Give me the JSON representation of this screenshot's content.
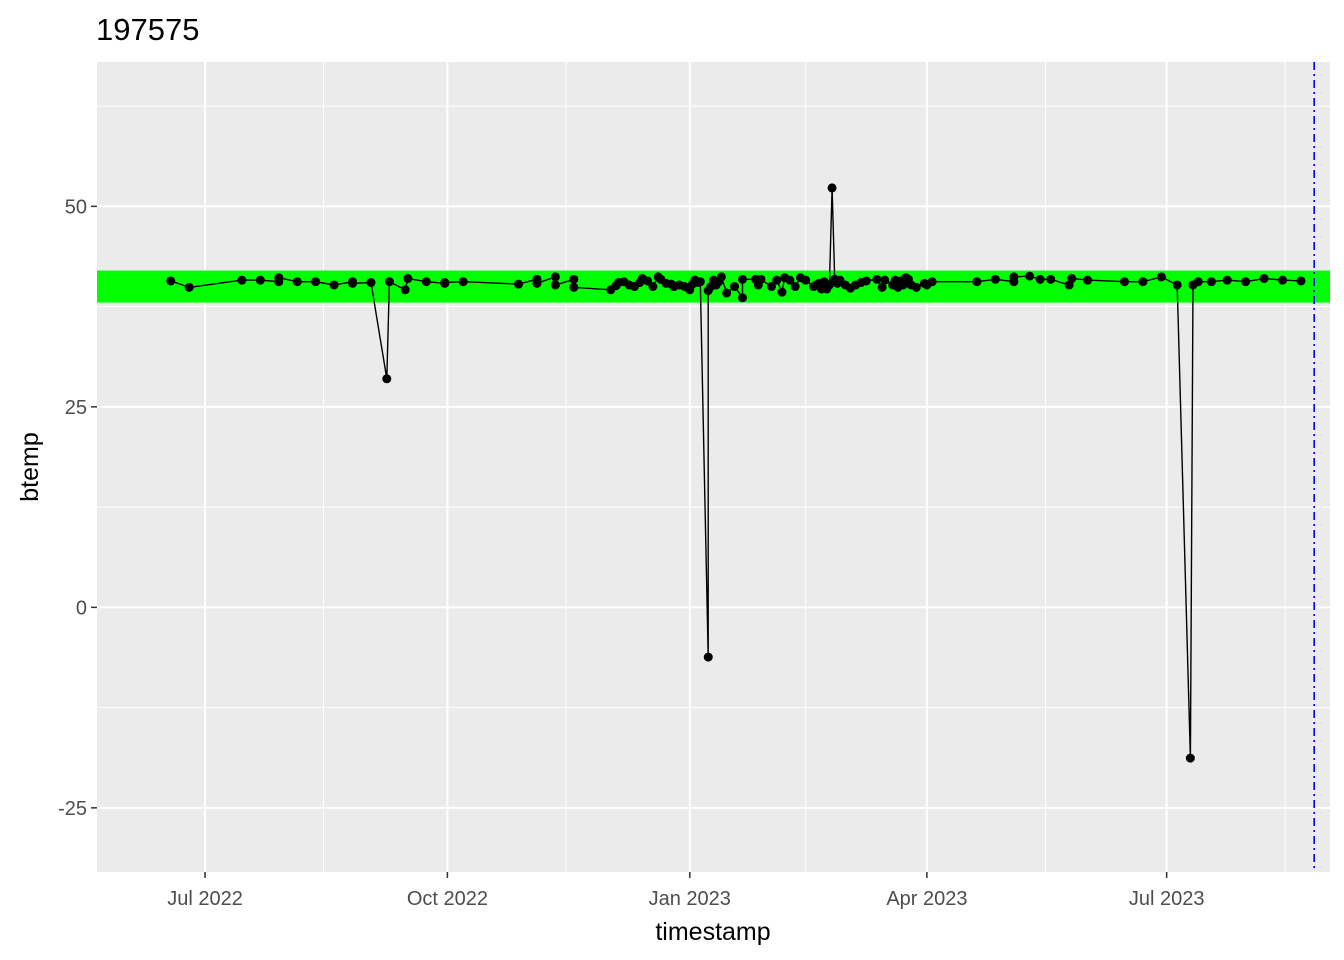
{
  "chart_data": {
    "type": "line",
    "title": "197575",
    "xlabel": "timestamp",
    "ylabel": "btemp",
    "xlim": [
      "2022-05-21",
      "2023-09-01"
    ],
    "ylim": [
      -33,
      68
    ],
    "x_ticks": [
      {
        "date": "2022-07-01",
        "label": "Jul 2022"
      },
      {
        "date": "2022-10-01",
        "label": "Oct 2022"
      },
      {
        "date": "2023-01-01",
        "label": "Jan 2023"
      },
      {
        "date": "2023-04-01",
        "label": "Apr 2023"
      },
      {
        "date": "2023-07-01",
        "label": "Jul 2023"
      }
    ],
    "x_minor_ticks": [
      "2022-08-15",
      "2022-11-15",
      "2023-02-14",
      "2023-05-16",
      "2023-08-15"
    ],
    "y_ticks": [
      -25,
      0,
      25,
      50
    ],
    "y_minor_ticks": [
      -12.5,
      12.5,
      37.5,
      62.5
    ],
    "grid": true,
    "normal_band": {
      "ymin": 38,
      "ymax": 42,
      "color": "#00ff00"
    },
    "reference_line": {
      "date": "2023-08-26",
      "color": "#0000ff",
      "style": "dotdash"
    },
    "series": [
      {
        "color": "#000000",
        "points": [
          [
            "2022-06-18",
            40.7
          ],
          [
            "2022-06-25",
            39.9
          ],
          [
            "2022-07-15",
            40.8
          ],
          [
            "2022-07-22",
            40.8
          ],
          [
            "2022-07-29",
            40.6
          ],
          [
            "2022-07-29",
            41.1
          ],
          [
            "2022-08-05",
            40.6
          ],
          [
            "2022-08-12",
            40.6
          ],
          [
            "2022-08-19",
            40.2
          ],
          [
            "2022-08-26",
            40.6
          ],
          [
            "2022-08-26",
            40.4
          ],
          [
            "2022-09-02",
            40.5
          ],
          [
            "2022-09-08",
            28.5
          ],
          [
            "2022-09-09",
            40.6
          ],
          [
            "2022-09-15",
            39.6
          ],
          [
            "2022-09-16",
            41.0
          ],
          [
            "2022-09-23",
            40.6
          ],
          [
            "2022-09-30",
            40.4
          ],
          [
            "2022-09-30",
            40.5
          ],
          [
            "2022-10-07",
            40.6
          ],
          [
            "2022-10-28",
            40.3
          ],
          [
            "2022-11-04",
            40.9
          ],
          [
            "2022-11-04",
            40.4
          ],
          [
            "2022-11-11",
            41.2
          ],
          [
            "2022-11-11",
            40.2
          ],
          [
            "2022-11-18",
            40.9
          ],
          [
            "2022-11-18",
            39.9
          ],
          [
            "2022-12-02",
            39.6
          ],
          [
            "2022-12-04",
            40.1
          ],
          [
            "2022-12-05",
            40.5
          ],
          [
            "2022-12-07",
            40.6
          ],
          [
            "2022-12-09",
            40.2
          ],
          [
            "2022-12-11",
            40.0
          ],
          [
            "2022-12-13",
            40.5
          ],
          [
            "2022-12-14",
            41.0
          ],
          [
            "2022-12-16",
            40.7
          ],
          [
            "2022-12-18",
            40.0
          ],
          [
            "2022-12-20",
            41.2
          ],
          [
            "2022-12-21",
            40.9
          ],
          [
            "2022-12-23",
            40.4
          ],
          [
            "2022-12-25",
            40.3
          ],
          [
            "2022-12-26",
            40.0
          ],
          [
            "2022-12-28",
            40.2
          ],
          [
            "2022-12-30",
            40.0
          ],
          [
            "2023-01-01",
            39.6
          ],
          [
            "2023-01-02",
            40.3
          ],
          [
            "2023-01-03",
            40.8
          ],
          [
            "2023-01-04",
            40.5
          ],
          [
            "2023-01-05",
            40.6
          ],
          [
            "2023-01-08",
            -6.2
          ],
          [
            "2023-01-08",
            39.5
          ],
          [
            "2023-01-09",
            40.0
          ],
          [
            "2023-01-10",
            40.8
          ],
          [
            "2023-01-11",
            40.2
          ],
          [
            "2023-01-12",
            40.6
          ],
          [
            "2023-01-13",
            41.2
          ],
          [
            "2023-01-15",
            39.2
          ],
          [
            "2023-01-18",
            40.0
          ],
          [
            "2023-01-21",
            38.6
          ],
          [
            "2023-01-21",
            40.9
          ],
          [
            "2023-01-26",
            40.9
          ],
          [
            "2023-01-27",
            40.2
          ],
          [
            "2023-01-28",
            40.9
          ],
          [
            "2023-02-01",
            40.0
          ],
          [
            "2023-02-03",
            40.8
          ],
          [
            "2023-02-05",
            39.3
          ],
          [
            "2023-02-06",
            41.1
          ],
          [
            "2023-02-08",
            40.8
          ],
          [
            "2023-02-10",
            40.0
          ],
          [
            "2023-02-12",
            41.1
          ],
          [
            "2023-02-14",
            40.8
          ],
          [
            "2023-02-17",
            40.0
          ],
          [
            "2023-02-18",
            40.2
          ],
          [
            "2023-02-19",
            40.4
          ],
          [
            "2023-02-20",
            39.7
          ],
          [
            "2023-02-21",
            40.6
          ],
          [
            "2023-02-22",
            39.7
          ],
          [
            "2023-02-23",
            40.2
          ],
          [
            "2023-02-24",
            52.3
          ],
          [
            "2023-02-25",
            40.9
          ],
          [
            "2023-02-26",
            40.4
          ],
          [
            "2023-02-27",
            40.8
          ],
          [
            "2023-03-01",
            40.2
          ],
          [
            "2023-03-03",
            39.8
          ],
          [
            "2023-03-05",
            40.2
          ],
          [
            "2023-03-07",
            40.5
          ],
          [
            "2023-03-09",
            40.7
          ],
          [
            "2023-03-13",
            40.9
          ],
          [
            "2023-03-15",
            39.9
          ],
          [
            "2023-03-16",
            40.8
          ],
          [
            "2023-03-19",
            40.2
          ],
          [
            "2023-03-20",
            40.8
          ],
          [
            "2023-03-21",
            39.9
          ],
          [
            "2023-03-22",
            40.7
          ],
          [
            "2023-03-23",
            40.2
          ],
          [
            "2023-03-24",
            41.1
          ],
          [
            "2023-03-25",
            40.9
          ],
          [
            "2023-03-26",
            40.2
          ],
          [
            "2023-03-28",
            39.9
          ],
          [
            "2023-03-31",
            40.4
          ],
          [
            "2023-04-01",
            40.2
          ],
          [
            "2023-04-03",
            40.6
          ],
          [
            "2023-04-20",
            40.6
          ],
          [
            "2023-04-27",
            40.9
          ],
          [
            "2023-05-04",
            40.6
          ],
          [
            "2023-05-04",
            41.2
          ],
          [
            "2023-05-10",
            41.3
          ],
          [
            "2023-05-14",
            40.9
          ],
          [
            "2023-05-18",
            40.9
          ],
          [
            "2023-05-25",
            40.2
          ],
          [
            "2023-05-26",
            41.0
          ],
          [
            "2023-06-01",
            40.8
          ],
          [
            "2023-06-15",
            40.6
          ],
          [
            "2023-06-22",
            40.6
          ],
          [
            "2023-06-29",
            41.2
          ],
          [
            "2023-07-05",
            40.2
          ],
          [
            "2023-07-10",
            -18.8
          ],
          [
            "2023-07-11",
            40.2
          ],
          [
            "2023-07-13",
            40.6
          ],
          [
            "2023-07-18",
            40.6
          ],
          [
            "2023-07-24",
            40.8
          ],
          [
            "2023-07-31",
            40.6
          ],
          [
            "2023-08-07",
            41.0
          ],
          [
            "2023-08-14",
            40.8
          ],
          [
            "2023-08-21",
            40.7
          ]
        ]
      }
    ]
  }
}
